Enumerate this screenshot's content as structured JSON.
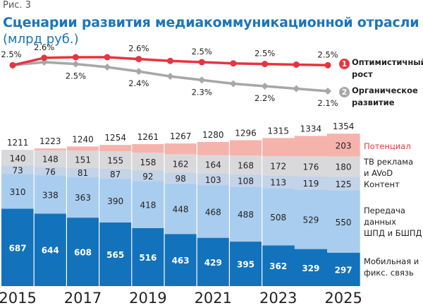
{
  "figure_label": "Рис. 3",
  "title": "Сценарии развития медиакоммуникационной отрасли",
  "subtitle": "(млрд руб.)",
  "colors": {
    "title": "#1a75bc",
    "optimistic": "#e5353f",
    "organic": "#a7a7a9",
    "potential": "#f6b3ac",
    "tv": "#d9d9dc",
    "content": "#c3d3e8",
    "data": "#a9cdee",
    "mobile": "#1272bc"
  },
  "chart_data": [
    {
      "type": "line",
      "title": "Темпы роста по сценариям",
      "x": [
        "2015",
        "2016",
        "2017",
        "2018",
        "2019",
        "2020",
        "2021",
        "2022",
        "2023",
        "2024",
        "2025"
      ],
      "series": [
        {
          "name": "Оптимистичный рост",
          "number": "1",
          "values": [
            2.5,
            2.62,
            2.63,
            2.63,
            2.6,
            2.57,
            2.55,
            2.53,
            2.52,
            2.51,
            2.5
          ],
          "labels": [
            {
              "index": 1,
              "text": "2.6%"
            },
            {
              "index": 4,
              "text": "2.6%"
            },
            {
              "index": 6,
              "text": "2.5%"
            },
            {
              "index": 8,
              "text": "2.5%"
            },
            {
              "index": 10,
              "text": "2.5%"
            }
          ]
        },
        {
          "name": "Органическое развитие",
          "number": "2",
          "values": [
            2.5,
            2.55,
            2.52,
            2.47,
            2.4,
            2.32,
            2.26,
            2.2,
            2.16,
            2.12,
            2.08
          ],
          "labels": [
            {
              "index": 2,
              "text": "2.5%"
            },
            {
              "index": 4,
              "text": "2.4%"
            },
            {
              "index": 6,
              "text": "2.3%"
            },
            {
              "index": 8,
              "text": "2.2%"
            },
            {
              "index": 10,
              "text": "2.1%"
            }
          ]
        }
      ],
      "start_label": "2.5%",
      "legend": [
        {
          "number": "1",
          "text_line1": "Оптимистичный",
          "text_line2": "рост"
        },
        {
          "number": "2",
          "text_line1": "Органическое",
          "text_line2": "развитие"
        }
      ]
    },
    {
      "type": "bar",
      "stacked": true,
      "categories": [
        "2015",
        "2016",
        "2017",
        "2018",
        "2019",
        "2020",
        "2021",
        "2022",
        "2023",
        "2024",
        "2025"
      ],
      "tick_labels": [
        "2015",
        "2017",
        "2019",
        "2021",
        "2023",
        "2025"
      ],
      "totals": [
        1211,
        1223,
        1240,
        1254,
        1261,
        1267,
        1280,
        1296,
        1315,
        1334,
        1354
      ],
      "series": [
        {
          "name": "Мобильная и фикс. связь",
          "key": "mobile",
          "values": [
            687,
            644,
            608,
            565,
            516,
            463,
            429,
            395,
            362,
            329,
            297
          ],
          "labeled": true
        },
        {
          "name": "Передача данных ШПД и БШПД",
          "key": "data",
          "values": [
            310,
            338,
            363,
            390,
            418,
            448,
            468,
            488,
            508,
            529,
            550
          ],
          "labeled": true
        },
        {
          "name": "Контент",
          "key": "content",
          "values": [
            73,
            76,
            81,
            87,
            92,
            98,
            103,
            108,
            113,
            119,
            125
          ],
          "labeled": true
        },
        {
          "name": "ТВ реклама и AVoD",
          "key": "tv",
          "values": [
            140,
            148,
            151,
            155,
            158,
            162,
            164,
            168,
            172,
            176,
            180
          ],
          "labeled": true
        },
        {
          "name": "Потенциал",
          "key": "potential",
          "values": [
            0,
            17,
            37,
            57,
            77,
            96,
            116,
            137,
            160,
            181,
            203
          ],
          "labeled_last_only": true,
          "last_label": "203"
        }
      ],
      "legend_labels": {
        "potential": [
          "Потенциал"
        ],
        "tv": [
          "ТВ реклама",
          "и AVoD"
        ],
        "content": [
          "Контент"
        ],
        "data": [
          "Передача",
          "данных",
          "ШПД и БШПД"
        ],
        "mobile": [
          "Мобильная и",
          "фикс. связь"
        ]
      },
      "ylim": [
        0,
        1400
      ]
    }
  ]
}
